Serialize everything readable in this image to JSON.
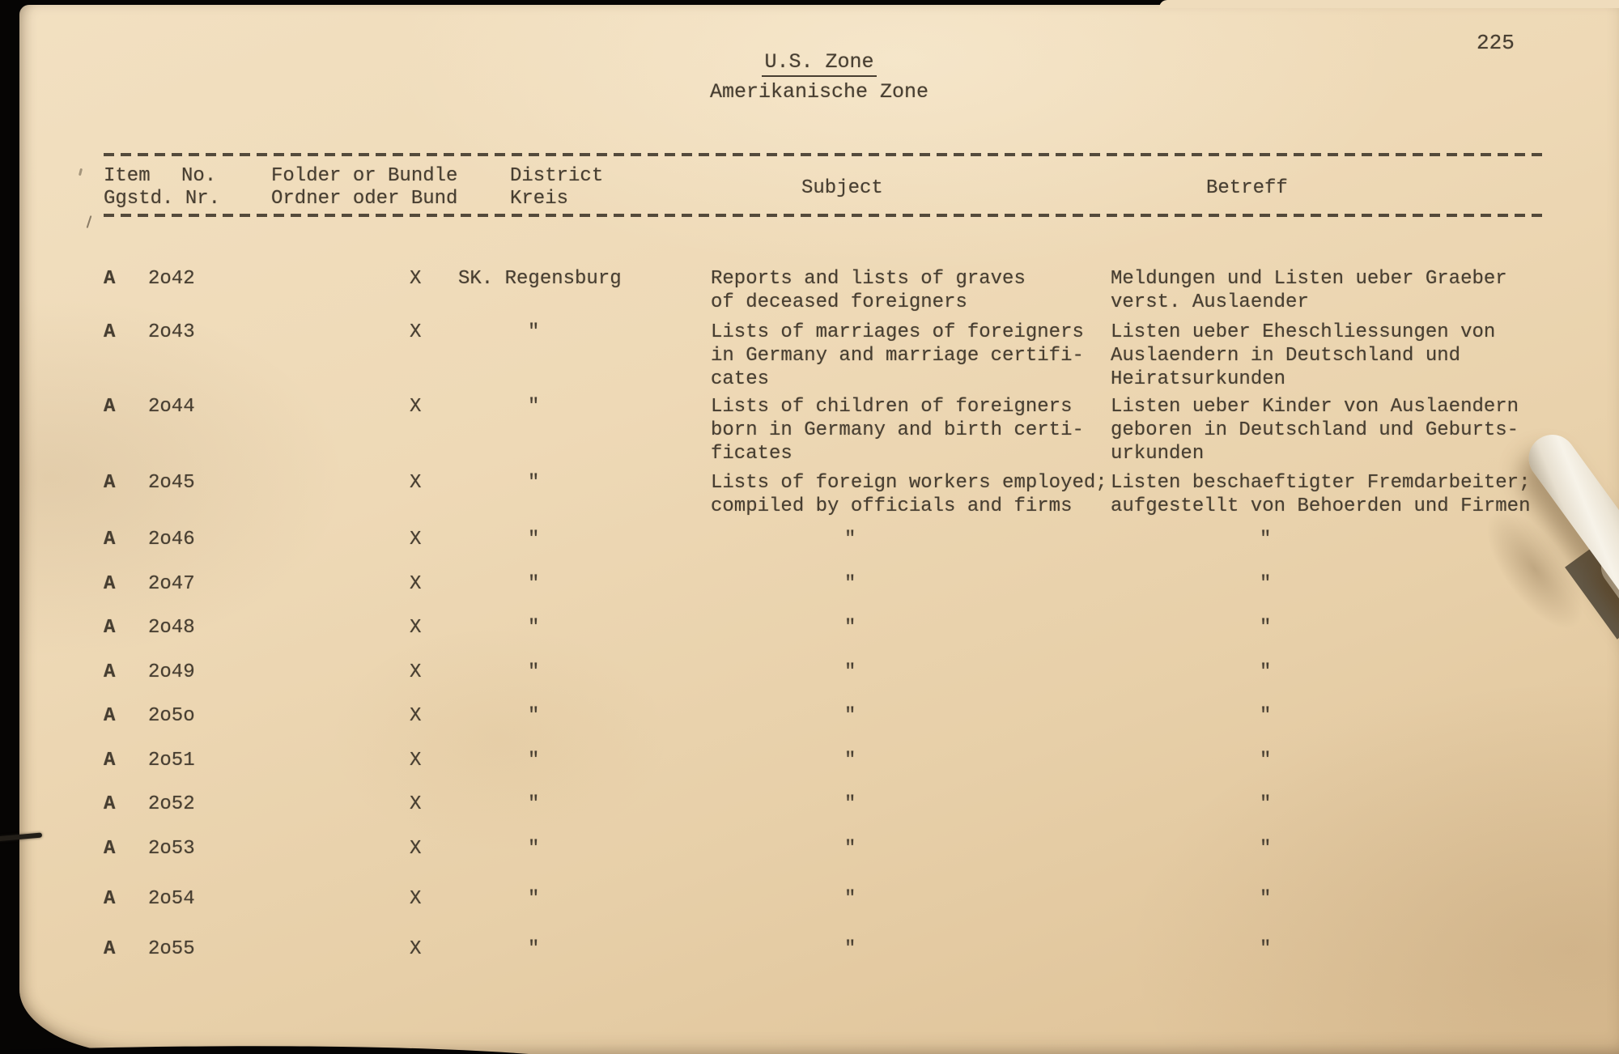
{
  "page": {
    "number": "225"
  },
  "title": {
    "main": "U.S. Zone",
    "sub": "Amerikanische Zone"
  },
  "table": {
    "headers": {
      "item_en": "Item",
      "item_no": "No.",
      "item_de": "Ggstd. Nr.",
      "folder_en": "Folder or Bundle",
      "folder_de": "Ordner oder Bund",
      "district_en": "District",
      "district_de": "Kreis",
      "subject_en": "Subject",
      "betreff_de": "Betreff"
    },
    "rows": [
      {
        "letter": "A",
        "number": "2o42",
        "folder_mark": "X",
        "district": "SK. Regensburg",
        "subject": "Reports and lists of graves\nof deceased foreigners",
        "betreff": "Meldungen und Listen ueber Graeber\nverst. Auslaender"
      },
      {
        "letter": "A",
        "number": "2o43",
        "folder_mark": "X",
        "district": "\"",
        "subject": "Lists of marriages of foreigners\nin Germany and marriage certifi-\ncates",
        "betreff": "Listen ueber Eheschliessungen von\nAuslaendern in Deutschland und\nHeiratsurkunden"
      },
      {
        "letter": "A",
        "number": "2o44",
        "folder_mark": "X",
        "district": "\"",
        "subject": "Lists of children of foreigners\nborn in Germany and birth certi-\nficates",
        "betreff": "Listen ueber Kinder von Auslaendern\ngeboren in Deutschland und Geburts-\nurkunden"
      },
      {
        "letter": "A",
        "number": "2o45",
        "folder_mark": "X",
        "district": "\"",
        "subject": "Lists of foreign workers employed;\ncompiled by officials and firms",
        "betreff": "Listen beschaeftigter Fremdarbeiter;\naufgestellt von Behoerden und Firmen"
      },
      {
        "letter": "A",
        "number": "2o46",
        "folder_mark": "X",
        "district": "\"",
        "subject": "\"",
        "betreff": "\""
      },
      {
        "letter": "A",
        "number": "2o47",
        "folder_mark": "X",
        "district": "\"",
        "subject": "\"",
        "betreff": "\""
      },
      {
        "letter": "A",
        "number": "2o48",
        "folder_mark": "X",
        "district": "\"",
        "subject": "\"",
        "betreff": "\""
      },
      {
        "letter": "A",
        "number": "2o49",
        "folder_mark": "X",
        "district": "\"",
        "subject": "\"",
        "betreff": "\""
      },
      {
        "letter": "A",
        "number": "2o5o",
        "folder_mark": "X",
        "district": "\"",
        "subject": "\"",
        "betreff": "\""
      },
      {
        "letter": "A",
        "number": "2o51",
        "folder_mark": "X",
        "district": "\"",
        "subject": "\"",
        "betreff": "\""
      },
      {
        "letter": "A",
        "number": "2o52",
        "folder_mark": "X",
        "district": "\"",
        "subject": "\"",
        "betreff": "\""
      },
      {
        "letter": "A",
        "number": "2o53",
        "folder_mark": "X",
        "district": "\"",
        "subject": "\"",
        "betreff": "\""
      },
      {
        "letter": "A",
        "number": "2o54",
        "folder_mark": "X",
        "district": "\"",
        "subject": "\"",
        "betreff": "\""
      },
      {
        "letter": "A",
        "number": "2o55",
        "folder_mark": "X",
        "district": "\"",
        "subject": "\"",
        "betreff": "\""
      }
    ]
  }
}
